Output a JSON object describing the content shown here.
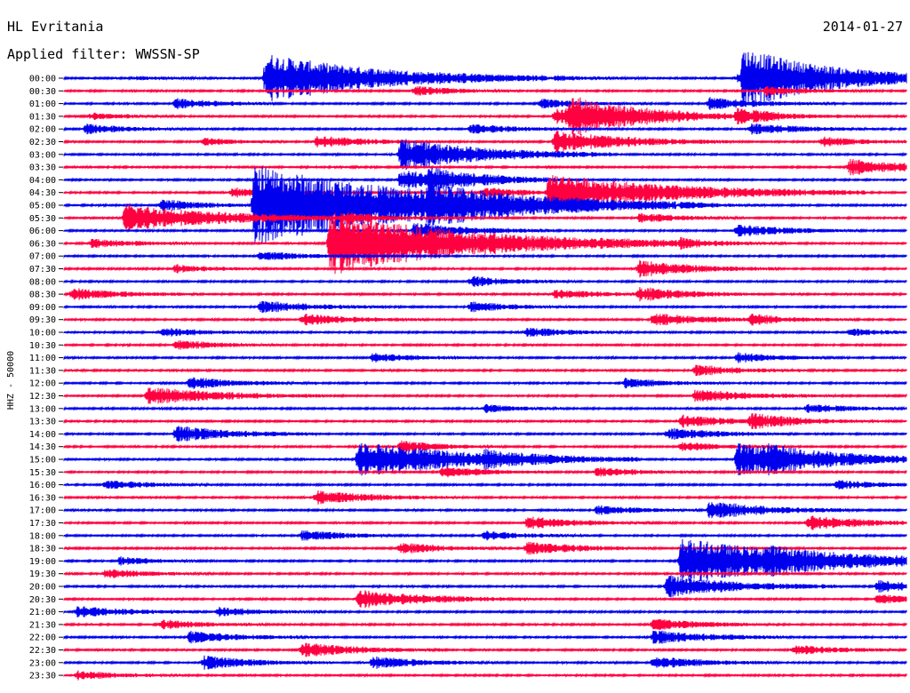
{
  "header": {
    "station": "HL Evritania",
    "date": "2014-01-27",
    "filter": "Applied filter: WWSSN-SP"
  },
  "chart_data": {
    "type": "helicorder",
    "title": "HL Evritania",
    "subtitle": "Applied filter: WWSSN-SP",
    "date": "2014-01-27",
    "ylabel": "HHZ - 50000",
    "xlabel": "",
    "row_labels": [
      "00:00",
      "00:30",
      "01:00",
      "01:30",
      "02:00",
      "02:30",
      "03:00",
      "03:30",
      "04:00",
      "04:30",
      "05:00",
      "05:30",
      "06:00",
      "06:30",
      "07:00",
      "07:30",
      "08:00",
      "08:30",
      "09:00",
      "09:30",
      "10:00",
      "10:30",
      "11:00",
      "11:30",
      "12:00",
      "12:30",
      "13:00",
      "13:30",
      "14:00",
      "14:30",
      "15:00",
      "15:30",
      "16:00",
      "16:30",
      "17:00",
      "17:30",
      "18:00",
      "18:30",
      "19:00",
      "19:30",
      "20:00",
      "20:30",
      "21:00",
      "21:30",
      "22:00",
      "22:30",
      "23:00",
      "23:30"
    ],
    "colors": [
      "#0000ee",
      "#ff0040"
    ],
    "minutes_per_row": 30,
    "background_amplitude": 0.18,
    "events": [
      {
        "row": 0,
        "minute": 2.5,
        "amp": 0.35,
        "dur": 1.2
      },
      {
        "row": 0,
        "minute": 17.5,
        "amp": 0.55,
        "dur": 1.2
      },
      {
        "row": 0,
        "minute": 24.0,
        "amp": 0.9,
        "dur": 1.5
      },
      {
        "row": 1,
        "minute": 12.5,
        "amp": 1.0,
        "dur": 1.5
      },
      {
        "row": 1,
        "minute": 25.0,
        "amp": 0.9,
        "dur": 1.5
      },
      {
        "row": 2,
        "minute": 4.0,
        "amp": 1.1,
        "dur": 1.5
      },
      {
        "row": 2,
        "minute": 17.0,
        "amp": 1.0,
        "dur": 1.5
      },
      {
        "row": 2,
        "minute": 23.0,
        "amp": 1.3,
        "dur": 1.8
      },
      {
        "row": 3,
        "minute": 1.0,
        "amp": 0.7,
        "dur": 1.2
      },
      {
        "row": 3,
        "minute": 17.5,
        "amp": 1.6,
        "dur": 2.0
      },
      {
        "row": 3,
        "minute": 24.0,
        "amp": 1.3,
        "dur": 1.8
      },
      {
        "row": 4,
        "minute": 0.8,
        "amp": 1.0,
        "dur": 1.5
      },
      {
        "row": 4,
        "minute": 14.5,
        "amp": 1.1,
        "dur": 1.5
      },
      {
        "row": 4,
        "minute": 24.5,
        "amp": 1.2,
        "dur": 1.8
      },
      {
        "row": 5,
        "minute": 5.0,
        "amp": 0.8,
        "dur": 1.2
      },
      {
        "row": 5,
        "minute": 9.0,
        "amp": 1.3,
        "dur": 1.8
      },
      {
        "row": 5,
        "minute": 27.0,
        "amp": 1.0,
        "dur": 1.5
      },
      {
        "row": 5,
        "minute": 17.5,
        "amp": 2.5,
        "dur": 2.5
      },
      {
        "row": 7,
        "minute": 28.0,
        "amp": 1.8,
        "dur": 2.0
      },
      {
        "row": 8,
        "minute": 12.0,
        "amp": 2.2,
        "dur": 2.5
      },
      {
        "row": 8,
        "minute": 13.0,
        "amp": 1.4,
        "dur": 1.8
      },
      {
        "row": 9,
        "minute": 6.0,
        "amp": 1.0,
        "dur": 1.5
      },
      {
        "row": 9,
        "minute": 15.0,
        "amp": 1.0,
        "dur": 1.5
      },
      {
        "row": 10,
        "minute": 3.5,
        "amp": 1.2,
        "dur": 1.5
      },
      {
        "row": 10,
        "minute": 13.0,
        "amp": 2.0,
        "dur": 2.5
      },
      {
        "row": 10,
        "minute": 22.0,
        "amp": 0.9,
        "dur": 1.2
      },
      {
        "row": 11,
        "minute": 10.0,
        "amp": 1.0,
        "dur": 1.5
      },
      {
        "row": 11,
        "minute": 20.5,
        "amp": 1.0,
        "dur": 1.5
      },
      {
        "row": 12,
        "minute": 12.5,
        "amp": 1.8,
        "dur": 2.0
      },
      {
        "row": 12,
        "minute": 24.0,
        "amp": 1.3,
        "dur": 1.8
      },
      {
        "row": 13,
        "minute": 1.0,
        "amp": 1.0,
        "dur": 1.5
      },
      {
        "row": 13,
        "minute": 22.0,
        "amp": 1.1,
        "dur": 1.5
      },
      {
        "row": 14,
        "minute": 7.0,
        "amp": 1.0,
        "dur": 1.5
      },
      {
        "row": 15,
        "minute": 20.5,
        "amp": 1.8,
        "dur": 2.0
      },
      {
        "row": 15,
        "minute": 4.0,
        "amp": 0.9,
        "dur": 1.2
      },
      {
        "row": 16,
        "minute": 14.5,
        "amp": 1.1,
        "dur": 1.5
      },
      {
        "row": 17,
        "minute": 0.3,
        "amp": 1.3,
        "dur": 1.8
      },
      {
        "row": 17,
        "minute": 17.5,
        "amp": 1.0,
        "dur": 1.5
      },
      {
        "row": 17,
        "minute": 20.5,
        "amp": 1.5,
        "dur": 1.8
      },
      {
        "row": 18,
        "minute": 7.0,
        "amp": 1.3,
        "dur": 1.8
      },
      {
        "row": 18,
        "minute": 14.5,
        "amp": 1.1,
        "dur": 1.5
      },
      {
        "row": 19,
        "minute": 8.5,
        "amp": 1.3,
        "dur": 1.8
      },
      {
        "row": 19,
        "minute": 21.0,
        "amp": 1.4,
        "dur": 1.8
      },
      {
        "row": 20,
        "minute": 16.5,
        "amp": 1.0,
        "dur": 1.5
      },
      {
        "row": 20,
        "minute": 28.0,
        "amp": 0.8,
        "dur": 1.2
      },
      {
        "row": 21,
        "minute": 4.0,
        "amp": 1.0,
        "dur": 1.5
      },
      {
        "row": 22,
        "minute": 11.0,
        "amp": 1.0,
        "dur": 1.5
      },
      {
        "row": 22,
        "minute": 24.0,
        "amp": 1.1,
        "dur": 1.5
      },
      {
        "row": 23,
        "minute": 22.5,
        "amp": 1.2,
        "dur": 1.5
      },
      {
        "row": 24,
        "minute": 20.0,
        "amp": 1.0,
        "dur": 1.5
      },
      {
        "row": 24,
        "minute": 4.5,
        "amp": 1.3,
        "dur": 1.8
      },
      {
        "row": 20,
        "minute": 3.5,
        "amp": 1.0,
        "dur": 1.5
      },
      {
        "row": 19,
        "minute": 24.5,
        "amp": 1.0,
        "dur": 1.5
      },
      {
        "row": 25,
        "minute": 3.0,
        "amp": 2.0,
        "dur": 2.5
      },
      {
        "row": 25,
        "minute": 22.5,
        "amp": 1.4,
        "dur": 2.0
      },
      {
        "row": 26,
        "minute": 15.0,
        "amp": 0.9,
        "dur": 1.2
      },
      {
        "row": 26,
        "minute": 26.5,
        "amp": 1.0,
        "dur": 1.5
      },
      {
        "row": 27,
        "minute": 22.0,
        "amp": 1.3,
        "dur": 1.8
      },
      {
        "row": 27,
        "minute": 24.5,
        "amp": 1.5,
        "dur": 1.8
      },
      {
        "row": 28,
        "minute": 4.0,
        "amp": 1.8,
        "dur": 2.0
      },
      {
        "row": 28,
        "minute": 21.5,
        "amp": 1.3,
        "dur": 1.8
      },
      {
        "row": 29,
        "minute": 12.0,
        "amp": 1.2,
        "dur": 1.5
      },
      {
        "row": 29,
        "minute": 22.0,
        "amp": 1.0,
        "dur": 1.5
      },
      {
        "row": 30,
        "minute": 15.0,
        "amp": 1.0,
        "dur": 1.5
      },
      {
        "row": 30,
        "minute": 25.0,
        "amp": 1.0,
        "dur": 1.5
      },
      {
        "row": 31,
        "minute": 13.5,
        "amp": 1.2,
        "dur": 1.5
      },
      {
        "row": 31,
        "minute": 19.0,
        "amp": 1.0,
        "dur": 1.5
      },
      {
        "row": 32,
        "minute": 1.5,
        "amp": 1.0,
        "dur": 1.5
      },
      {
        "row": 32,
        "minute": 27.5,
        "amp": 1.0,
        "dur": 1.5
      },
      {
        "row": 33,
        "minute": 9.0,
        "amp": 1.5,
        "dur": 2.0
      },
      {
        "row": 34,
        "minute": 23.0,
        "amp": 2.0,
        "dur": 2.0
      },
      {
        "row": 34,
        "minute": 19.0,
        "amp": 1.0,
        "dur": 1.5
      },
      {
        "row": 35,
        "minute": 26.5,
        "amp": 1.6,
        "dur": 2.0
      },
      {
        "row": 35,
        "minute": 16.5,
        "amp": 1.3,
        "dur": 1.8
      },
      {
        "row": 36,
        "minute": 8.5,
        "amp": 1.2,
        "dur": 1.5
      },
      {
        "row": 36,
        "minute": 15.0,
        "amp": 1.0,
        "dur": 1.5
      },
      {
        "row": 37,
        "minute": 12.0,
        "amp": 1.2,
        "dur": 1.5
      },
      {
        "row": 37,
        "minute": 16.5,
        "amp": 1.5,
        "dur": 1.8
      },
      {
        "row": 38,
        "minute": 2.0,
        "amp": 0.9,
        "dur": 1.2
      },
      {
        "row": 38,
        "minute": 25.0,
        "amp": 1.0,
        "dur": 1.5
      },
      {
        "row": 39,
        "minute": 1.5,
        "amp": 1.0,
        "dur": 1.5
      },
      {
        "row": 40,
        "minute": 21.5,
        "amp": 2.5,
        "dur": 2.5
      },
      {
        "row": 40,
        "minute": 29.0,
        "amp": 1.3,
        "dur": 1.5
      },
      {
        "row": 41,
        "minute": 10.5,
        "amp": 2.0,
        "dur": 2.5
      },
      {
        "row": 41,
        "minute": 29.0,
        "amp": 1.0,
        "dur": 1.5
      },
      {
        "row": 42,
        "minute": 0.5,
        "amp": 1.3,
        "dur": 1.8
      },
      {
        "row": 42,
        "minute": 5.5,
        "amp": 1.0,
        "dur": 1.5
      },
      {
        "row": 43,
        "minute": 3.5,
        "amp": 1.0,
        "dur": 1.5
      },
      {
        "row": 43,
        "minute": 21.0,
        "amp": 1.3,
        "dur": 1.8
      },
      {
        "row": 44,
        "minute": 4.5,
        "amp": 1.3,
        "dur": 1.8
      },
      {
        "row": 44,
        "minute": 21.0,
        "amp": 1.5,
        "dur": 2.0
      },
      {
        "row": 45,
        "minute": 8.5,
        "amp": 1.6,
        "dur": 2.0
      },
      {
        "row": 45,
        "minute": 26.0,
        "amp": 1.1,
        "dur": 1.5
      },
      {
        "row": 46,
        "minute": 5.0,
        "amp": 1.5,
        "dur": 1.8
      },
      {
        "row": 46,
        "minute": 11.0,
        "amp": 1.3,
        "dur": 1.8
      },
      {
        "row": 46,
        "minute": 21.0,
        "amp": 1.3,
        "dur": 1.8
      },
      {
        "row": 47,
        "minute": 0.5,
        "amp": 1.0,
        "dur": 1.5
      }
    ],
    "big_events": [
      {
        "row": 0,
        "minute": 7.2,
        "amp": 5.5,
        "dur": 4.0
      },
      {
        "row": 0,
        "minute": 24.2,
        "amp": 6.0,
        "dur": 3.5
      },
      {
        "row": 3,
        "minute": 18.0,
        "amp": 3.5,
        "dur": 3.0
      },
      {
        "row": 6,
        "minute": 12.0,
        "amp": 3.5,
        "dur": 3.0
      },
      {
        "row": 9,
        "minute": 17.3,
        "amp": 4.0,
        "dur": 4.5
      },
      {
        "row": 11,
        "minute": 2.2,
        "amp": 3.0,
        "dur": 3.5
      },
      {
        "row": 10,
        "minute": 6.8,
        "amp": 9.0,
        "dur": 6.0
      },
      {
        "row": 13,
        "minute": 9.5,
        "amp": 7.0,
        "dur": 5.0
      },
      {
        "row": 30,
        "minute": 10.5,
        "amp": 4.0,
        "dur": 4.0
      },
      {
        "row": 30,
        "minute": 24.0,
        "amp": 3.5,
        "dur": 3.5
      },
      {
        "row": 38,
        "minute": 22.0,
        "amp": 5.0,
        "dur": 5.0
      }
    ]
  }
}
